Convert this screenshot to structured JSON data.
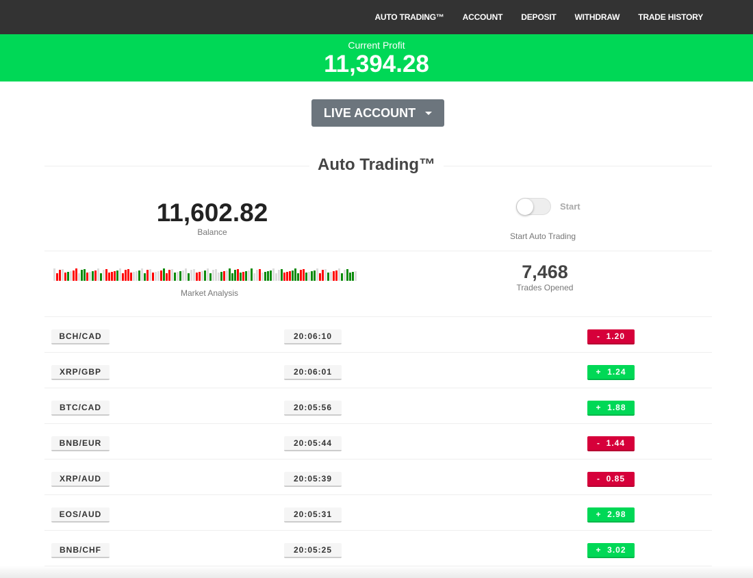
{
  "nav": {
    "items": [
      "AUTO TRADING™",
      "ACCOUNT",
      "DEPOSIT",
      "WITHDRAW",
      "TRADE HISTORY"
    ]
  },
  "profit": {
    "label": "Current Profit",
    "value": "11,394.28"
  },
  "account_button": "LIVE ACCOUNT",
  "section_title": "Auto Trading™",
  "balance": {
    "value": "11,602.82",
    "label": "Balance"
  },
  "auto_trading": {
    "toggle_label": "Start",
    "toggle_on": false,
    "caption": "Start Auto Trading"
  },
  "market_analysis": {
    "label": "Market Analysis",
    "bars": "grrgrGgrrgGGrgGrgGgrrrrGgrrrrggGgGrgrggrGrrgGgGggGggrrgGgGgggGrgGGGrGrGgGggrgGGGgggGrrrGGGrrGgGGgrrgGgrrgGgGGGg"
  },
  "trades": {
    "value": "7,468",
    "label": "Trades Opened"
  },
  "colors": {
    "up": "#00d856",
    "down": "#d6003a",
    "nav": "#333333",
    "grey": "#dddddd",
    "bar_green": "#0a8a0a",
    "bar_red": "#ff0000"
  },
  "rows": [
    {
      "pair": "BCH/CAD",
      "time": "20:06:10",
      "change": "-  1.20",
      "dir": "down"
    },
    {
      "pair": "XRP/GBP",
      "time": "20:06:01",
      "change": "+  1.24",
      "dir": "up"
    },
    {
      "pair": "BTC/CAD",
      "time": "20:05:56",
      "change": "+  1.88",
      "dir": "up"
    },
    {
      "pair": "BNB/EUR",
      "time": "20:05:44",
      "change": "-  1.44",
      "dir": "down"
    },
    {
      "pair": "XRP/AUD",
      "time": "20:05:39",
      "change": "-  0.85",
      "dir": "down"
    },
    {
      "pair": "EOS/AUD",
      "time": "20:05:31",
      "change": "+  2.98",
      "dir": "up"
    },
    {
      "pair": "BNB/CHF",
      "time": "20:05:25",
      "change": "+  3.02",
      "dir": "up"
    }
  ]
}
